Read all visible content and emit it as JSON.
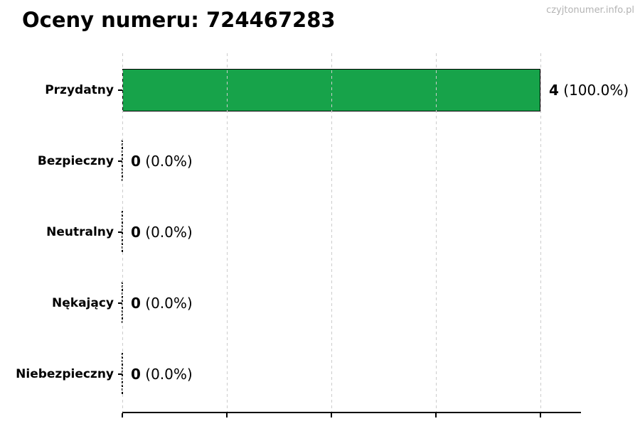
{
  "header": {
    "title": "Oceny numeru: 724467283"
  },
  "watermark": {
    "text": "czyjtonumer.info.pl"
  },
  "chart_data": {
    "type": "bar",
    "orientation": "horizontal",
    "title": "Oceny numeru: 724467283",
    "categories": [
      "Przydatny",
      "Bezpieczny",
      "Neutralny",
      "Nękający",
      "Niebezpieczny"
    ],
    "values": [
      4,
      0,
      0,
      0,
      0
    ],
    "percent_labels": [
      "100.0%",
      "0.0%",
      "0.0%",
      "0.0%",
      "0.0%"
    ],
    "value_labels": [
      "4 (100.0%)",
      "0 (0.0%)",
      "0 (0.0%)",
      "0 (0.0%)",
      "0 (0.0%)"
    ],
    "xlim": [
      0,
      4.39
    ],
    "xticks": [
      0,
      1,
      2,
      3,
      4
    ],
    "xtick_labels": [
      "",
      "",
      "",
      "",
      ""
    ],
    "grid": true,
    "legend": "none",
    "bar_color": "#17a34a",
    "bar_edge_color": "#000000",
    "gridline_color": "#cccccc",
    "axis_color": "#000000",
    "watermark_color": "#b3b3b3"
  }
}
